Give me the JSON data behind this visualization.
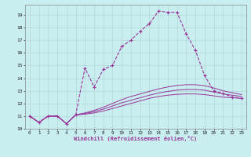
{
  "xlabel": "Windchill (Refroidissement éolien,°C)",
  "background_color": "#c8eef0",
  "grid_color": "#b0d0d0",
  "line_color": "#993399",
  "xlim": [
    -0.5,
    23.5
  ],
  "ylim": [
    10.0,
    19.8
  ],
  "yticks": [
    10,
    11,
    12,
    13,
    14,
    15,
    16,
    17,
    18,
    19
  ],
  "xticks": [
    0,
    1,
    2,
    3,
    4,
    5,
    6,
    7,
    8,
    9,
    10,
    11,
    12,
    13,
    14,
    15,
    16,
    17,
    18,
    19,
    20,
    21,
    22,
    23
  ],
  "curve1_x": [
    0,
    1,
    2,
    3,
    4,
    5,
    6,
    7,
    8,
    9,
    10,
    11,
    12,
    13,
    14,
    15,
    16,
    17,
    18,
    19,
    20,
    21,
    22,
    23
  ],
  "curve1_y": [
    11.0,
    10.5,
    11.0,
    11.0,
    10.4,
    11.1,
    14.8,
    13.3,
    14.7,
    15.0,
    16.5,
    17.0,
    17.7,
    18.3,
    19.3,
    19.2,
    19.2,
    17.5,
    16.2,
    14.2,
    13.0,
    12.8,
    12.5,
    12.4
  ],
  "curve2_x": [
    0,
    1,
    2,
    3,
    4,
    5,
    6,
    7,
    8,
    9,
    10,
    11,
    12,
    13,
    14,
    15,
    16,
    17,
    18,
    19,
    20,
    21,
    22,
    23
  ],
  "curve2_y": [
    11.0,
    10.5,
    11.0,
    11.0,
    10.4,
    11.1,
    11.15,
    11.25,
    11.4,
    11.6,
    11.8,
    12.0,
    12.2,
    12.4,
    12.55,
    12.65,
    12.72,
    12.75,
    12.75,
    12.7,
    12.6,
    12.5,
    12.45,
    12.4
  ],
  "curve3_x": [
    0,
    1,
    2,
    3,
    4,
    5,
    6,
    7,
    8,
    9,
    10,
    11,
    12,
    13,
    14,
    15,
    16,
    17,
    18,
    19,
    20,
    21,
    22,
    23
  ],
  "curve3_y": [
    11.0,
    10.5,
    11.0,
    11.0,
    10.4,
    11.1,
    11.2,
    11.35,
    11.55,
    11.8,
    12.05,
    12.25,
    12.45,
    12.65,
    12.82,
    12.95,
    13.05,
    13.1,
    13.1,
    13.05,
    12.9,
    12.75,
    12.65,
    12.55
  ],
  "curve4_x": [
    0,
    1,
    2,
    3,
    4,
    5,
    6,
    7,
    8,
    9,
    10,
    11,
    12,
    13,
    14,
    15,
    16,
    17,
    18,
    19,
    20,
    21,
    22,
    23
  ],
  "curve4_y": [
    11.0,
    10.5,
    11.0,
    11.0,
    10.4,
    11.1,
    11.25,
    11.45,
    11.7,
    12.0,
    12.3,
    12.55,
    12.75,
    12.95,
    13.15,
    13.3,
    13.42,
    13.48,
    13.48,
    13.4,
    13.22,
    13.0,
    12.85,
    12.7
  ]
}
